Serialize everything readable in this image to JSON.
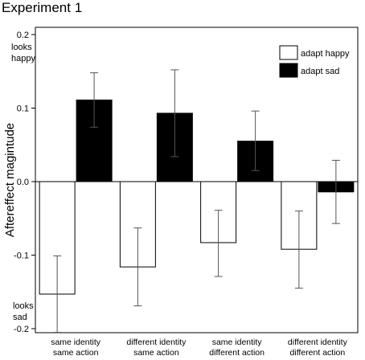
{
  "page_title": "Experiment 1",
  "chart_data": {
    "type": "bar",
    "title": "",
    "xlabel": "",
    "ylabel": "Aftereffect magintude",
    "ylim": [
      -0.2,
      0.2
    ],
    "yticks": [
      0.2,
      0.1,
      0.0,
      -0.1,
      -0.2
    ],
    "ytick_labels": [
      "0.2",
      "0.1",
      "0.0",
      "-0.1",
      "-0.2"
    ],
    "annotations": {
      "top": [
        "looks",
        "happy"
      ],
      "bottom": [
        "looks",
        "sad"
      ]
    },
    "categories": [
      [
        "same identity",
        "same action"
      ],
      [
        "different identity",
        "same action"
      ],
      [
        "same identity",
        "different action"
      ],
      [
        "different identity",
        "different action"
      ]
    ],
    "legend_position": "top-right",
    "series": [
      {
        "name": "adapt happy",
        "color": "#ffffff",
        "values": [
          -0.153,
          -0.116,
          -0.083,
          -0.092
        ],
        "err_low": [
          -0.205,
          -0.169,
          -0.129,
          -0.145
        ],
        "err_high": [
          -0.101,
          -0.063,
          -0.039,
          -0.04
        ]
      },
      {
        "name": "adapt sad",
        "color": "#000000",
        "values": [
          0.111,
          0.093,
          0.055,
          -0.014
        ],
        "err_low": [
          0.074,
          0.034,
          0.015,
          -0.057
        ],
        "err_high": [
          0.148,
          0.152,
          0.096,
          0.029
        ]
      }
    ]
  }
}
